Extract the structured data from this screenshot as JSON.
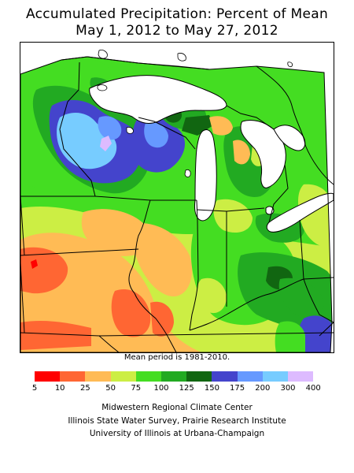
{
  "title_line1": "Accumulated Precipitation: Percent of Mean",
  "title_line2": "May 1, 2012 to May 27, 2012",
  "mean_note": "Mean period is 1981-2010.",
  "legend": {
    "colors": [
      "#ff0000",
      "#ff6633",
      "#ffbb55",
      "#ccee44",
      "#44dd22",
      "#22aa22",
      "#116611",
      "#4444cc",
      "#6699ff",
      "#77ccff",
      "#ddbbff"
    ],
    "labels": [
      "5",
      "10",
      "25",
      "50",
      "75",
      "100",
      "125",
      "150",
      "175",
      "200",
      "300",
      "400"
    ]
  },
  "credits": [
    "Midwestern Regional Climate Center",
    "Illinois State Water Survey, Prairie Research Institute",
    "University of Illinois at Urbana-Champaign"
  ]
}
